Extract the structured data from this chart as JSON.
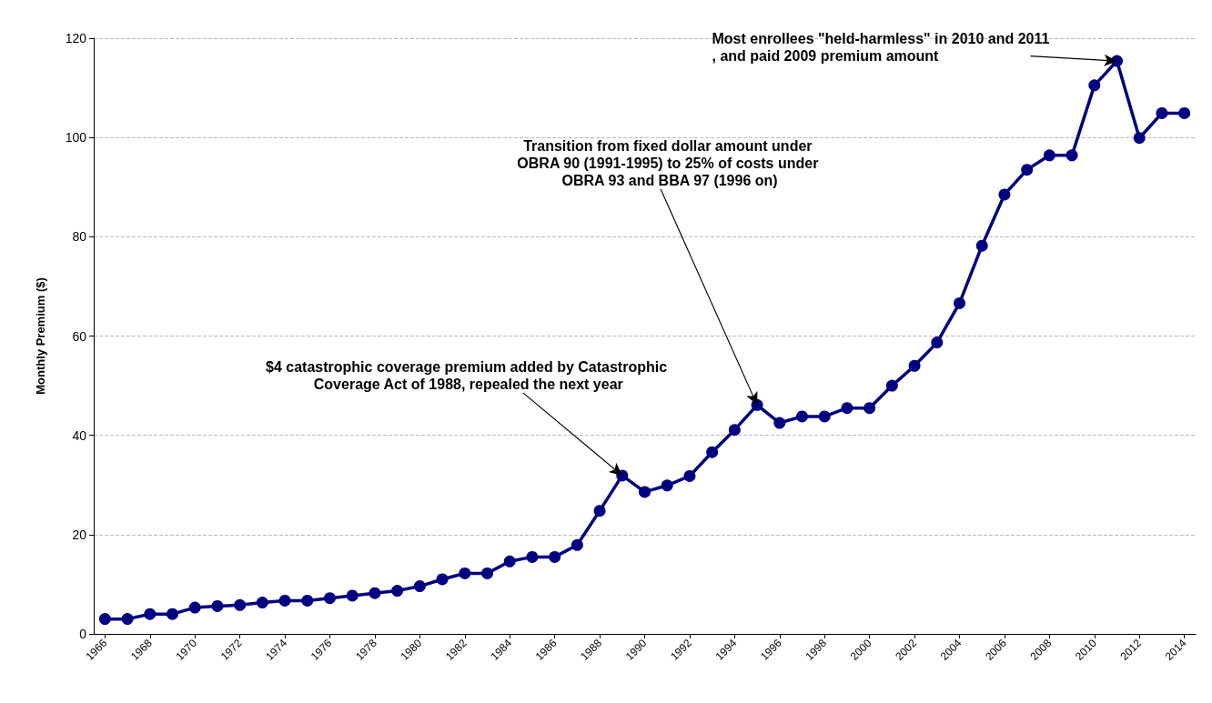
{
  "chart_data": {
    "type": "line",
    "ylabel": "Monthly Premium ($)",
    "x": [
      1966,
      1967,
      1968,
      1969,
      1970,
      1971,
      1972,
      1973,
      1974,
      1975,
      1976,
      1977,
      1978,
      1979,
      1980,
      1981,
      1982,
      1983,
      1984,
      1985,
      1986,
      1987,
      1988,
      1989,
      1990,
      1991,
      1992,
      1993,
      1994,
      1995,
      1996,
      1997,
      1998,
      1999,
      2000,
      2001,
      2002,
      2003,
      2004,
      2005,
      2006,
      2007,
      2008,
      2009,
      2010,
      2011,
      2012,
      2013,
      2014
    ],
    "series": [
      {
        "color": "#000080",
        "values": [
          3.0,
          3.0,
          4.0,
          4.0,
          5.3,
          5.6,
          5.8,
          6.3,
          6.7,
          6.7,
          7.2,
          7.7,
          8.2,
          8.7,
          9.6,
          11.0,
          12.2,
          12.2,
          14.6,
          15.5,
          15.5,
          17.9,
          24.8,
          31.9,
          28.6,
          29.9,
          31.8,
          36.6,
          41.1,
          46.1,
          42.5,
          43.8,
          43.8,
          45.5,
          45.5,
          50.0,
          54.0,
          58.7,
          66.6,
          78.2,
          88.5,
          93.5,
          96.4,
          96.4,
          110.5,
          115.4,
          99.9,
          104.9,
          104.9
        ]
      }
    ],
    "xlim": [
      1965.5,
      2014.5
    ],
    "xticks": [
      1966,
      1968,
      1970,
      1972,
      1974,
      1976,
      1978,
      1980,
      1982,
      1984,
      1986,
      1988,
      1990,
      1992,
      1994,
      1996,
      1998,
      2000,
      2002,
      2004,
      2006,
      2008,
      2010,
      2012,
      2014
    ],
    "ylim": [
      0,
      120
    ],
    "yticks": [
      0,
      20,
      40,
      60,
      80,
      100,
      120
    ],
    "grid": "y",
    "marker": "circle",
    "line_style": "solid",
    "annotations": [
      {
        "text": "$4 catastrophic coverage premium added by Catastrophic Coverage Act of 1988, repealed the next year",
        "x": 1989,
        "y": 31.9
      },
      {
        "text": "Transition from fixed dollar amount under OBRA 90 (1991-1995) to 25% of costs under OBRA 93 and BBA 97 (1996 on)",
        "x": 1995,
        "y": 46.1
      },
      {
        "text": "Most enrollees \"held-harmless\" in 2010 and 2011, and paid 2009 premium amount",
        "x": 2011,
        "y": 115.4
      }
    ]
  }
}
